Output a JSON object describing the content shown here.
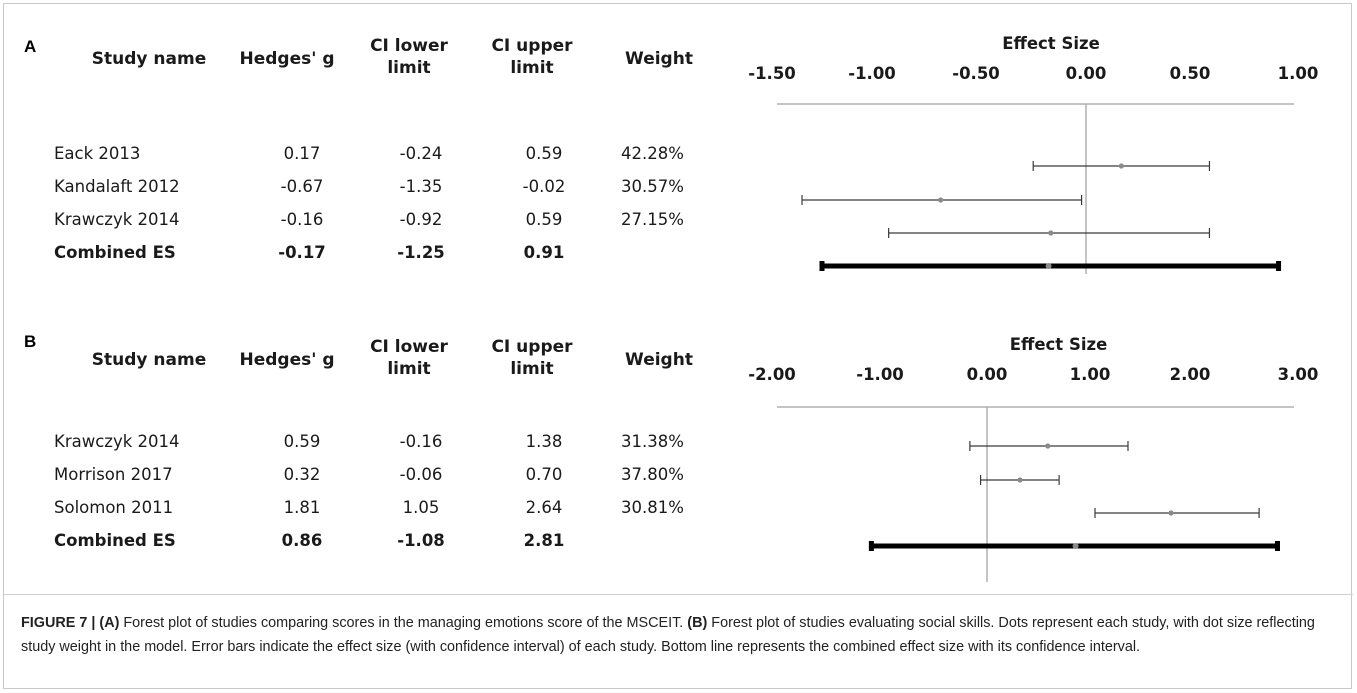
{
  "columns": {
    "study_name": "Study name",
    "hedges_g": "Hedges' g",
    "ci_lower_l1": "CI lower",
    "ci_lower_l2": "limit",
    "ci_upper_l1": "CI upper",
    "ci_upper_l2": "limit",
    "weight": "Weight"
  },
  "chart_data": [
    {
      "type": "forest",
      "panel": "A",
      "axis_title": "Effect Size",
      "xlim": [
        -1.5,
        1.0
      ],
      "ticks": [
        -1.5,
        -1.0,
        -0.5,
        0.0,
        0.5,
        1.0
      ],
      "tick_labels": [
        "-1.50",
        "-1.00",
        "-0.50",
        "0.00",
        "0.50",
        "1.00"
      ],
      "rows": [
        {
          "study": "Eack 2013",
          "g": 0.17,
          "g_text": "0.17",
          "lower": -0.24,
          "lower_text": "-0.24",
          "upper": 0.59,
          "upper_text": "0.59",
          "weight": "42.28%"
        },
        {
          "study": "Kandalaft 2012",
          "g": -0.67,
          "g_text": "-0.67",
          "lower": -1.35,
          "lower_text": "-1.35",
          "upper": -0.02,
          "upper_text": "-0.02",
          "weight": "30.57%"
        },
        {
          "study": "Krawczyk 2014",
          "g": -0.16,
          "g_text": "-0.16",
          "lower": -0.92,
          "lower_text": "-0.92",
          "upper": 0.59,
          "upper_text": "0.59",
          "weight": "27.15%"
        }
      ],
      "combined": {
        "study": "Combined ES",
        "g": -0.17,
        "g_text": "-0.17",
        "lower": -1.25,
        "lower_text": "-1.25",
        "upper": 0.91,
        "upper_text": "0.91"
      }
    },
    {
      "type": "forest",
      "panel": "B",
      "axis_title": "Effect Size",
      "xlim": [
        -2.0,
        3.0
      ],
      "ticks": [
        -2.0,
        -1.0,
        0.0,
        1.0,
        2.0,
        3.0
      ],
      "tick_labels": [
        "-2.00",
        "-1.00",
        "0.00",
        "1.00",
        "2.00",
        "3.00"
      ],
      "rows": [
        {
          "study": "Krawczyk 2014",
          "g": 0.59,
          "g_text": "0.59",
          "lower": -0.16,
          "lower_text": "-0.16",
          "upper": 1.38,
          "upper_text": "1.38",
          "weight": "31.38%"
        },
        {
          "study": "Morrison 2017",
          "g": 0.32,
          "g_text": "0.32",
          "lower": -0.06,
          "lower_text": "-0.06",
          "upper": 0.7,
          "upper_text": "0.70",
          "weight": "37.80%"
        },
        {
          "study": "Solomon 2011",
          "g": 1.81,
          "g_text": "1.81",
          "lower": 1.05,
          "lower_text": "1.05",
          "upper": 2.64,
          "upper_text": "2.64",
          "weight": "30.81%"
        }
      ],
      "combined": {
        "study": "Combined ES",
        "g": 0.86,
        "g_text": "0.86",
        "lower": -1.08,
        "lower_text": "-1.08",
        "upper": 2.81,
        "upper_text": "2.81"
      }
    }
  ],
  "caption": {
    "fig_label": "FIGURE 7 |",
    "a_label": "(A)",
    "a_text": " Forest plot of studies comparing scores in the managing emotions score of the MSCEIT. ",
    "b_label": "(B)",
    "b_text": " Forest plot of studies evaluating social skills. Dots represent each study, with dot size reflecting study weight in the model. Error bars indicate the effect size (with confidence interval) of each study. Bottom line represents the combined effect size with its confidence interval."
  },
  "colors": {
    "bar": "#3a3a3a",
    "dot": "#8a8a8a",
    "combined_bar": "#000000",
    "zero_line": "#b0b0b0",
    "axis_line": "#b0b0b0"
  }
}
